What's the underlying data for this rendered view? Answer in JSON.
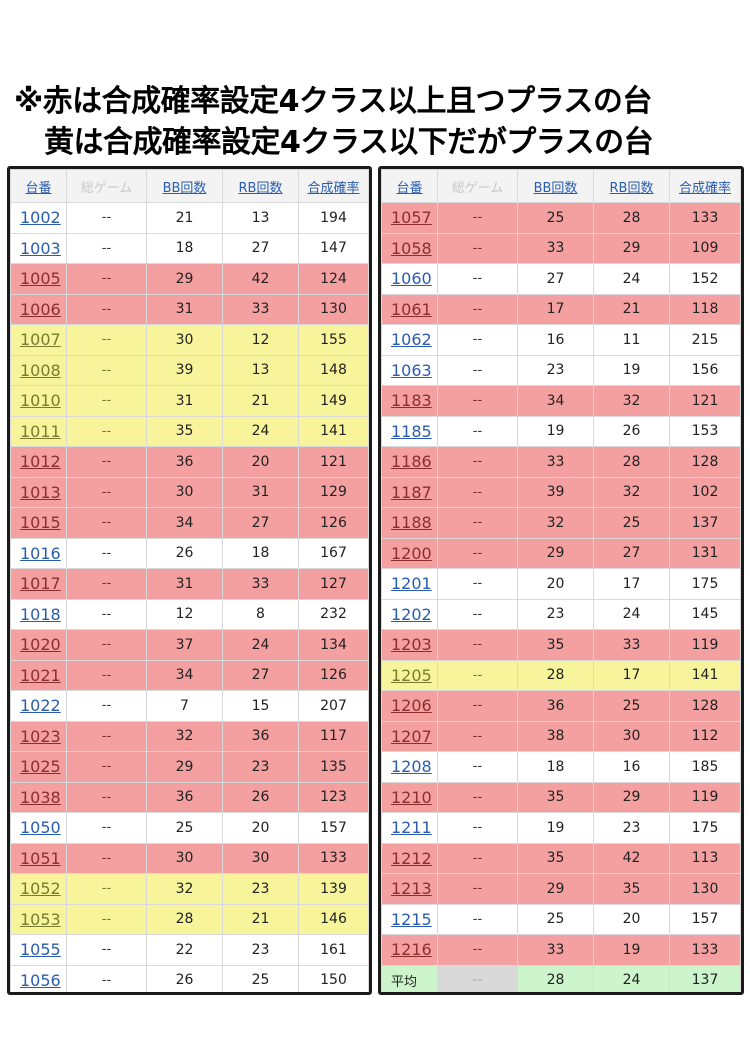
{
  "header": {
    "line1": "※赤は合成確率設定4クラス以上且つプラスの台",
    "line2": "黄は合成確率設定4クラス以下だがプラスの台"
  },
  "columns": [
    "台番",
    "総ゲーム",
    "BB回数",
    "RB回数",
    "合成確率"
  ],
  "left_rows": [
    {
      "id": "1002",
      "games": "--",
      "bb": "21",
      "rb": "13",
      "rate": "194",
      "color": "white"
    },
    {
      "id": "1003",
      "games": "--",
      "bb": "18",
      "rb": "27",
      "rate": "147",
      "color": "white"
    },
    {
      "id": "1005",
      "games": "--",
      "bb": "29",
      "rb": "42",
      "rate": "124",
      "color": "red"
    },
    {
      "id": "1006",
      "games": "--",
      "bb": "31",
      "rb": "33",
      "rate": "130",
      "color": "red"
    },
    {
      "id": "1007",
      "games": "--",
      "bb": "30",
      "rb": "12",
      "rate": "155",
      "color": "yellow"
    },
    {
      "id": "1008",
      "games": "--",
      "bb": "39",
      "rb": "13",
      "rate": "148",
      "color": "yellow"
    },
    {
      "id": "1010",
      "games": "--",
      "bb": "31",
      "rb": "21",
      "rate": "149",
      "color": "yellow"
    },
    {
      "id": "1011",
      "games": "--",
      "bb": "35",
      "rb": "24",
      "rate": "141",
      "color": "yellow"
    },
    {
      "id": "1012",
      "games": "--",
      "bb": "36",
      "rb": "20",
      "rate": "121",
      "color": "red"
    },
    {
      "id": "1013",
      "games": "--",
      "bb": "30",
      "rb": "31",
      "rate": "129",
      "color": "red"
    },
    {
      "id": "1015",
      "games": "--",
      "bb": "34",
      "rb": "27",
      "rate": "126",
      "color": "red"
    },
    {
      "id": "1016",
      "games": "--",
      "bb": "26",
      "rb": "18",
      "rate": "167",
      "color": "white"
    },
    {
      "id": "1017",
      "games": "--",
      "bb": "31",
      "rb": "33",
      "rate": "127",
      "color": "red"
    },
    {
      "id": "1018",
      "games": "--",
      "bb": "12",
      "rb": "8",
      "rate": "232",
      "color": "white"
    },
    {
      "id": "1020",
      "games": "--",
      "bb": "37",
      "rb": "24",
      "rate": "134",
      "color": "red"
    },
    {
      "id": "1021",
      "games": "--",
      "bb": "34",
      "rb": "27",
      "rate": "126",
      "color": "red"
    },
    {
      "id": "1022",
      "games": "--",
      "bb": "7",
      "rb": "15",
      "rate": "207",
      "color": "white"
    },
    {
      "id": "1023",
      "games": "--",
      "bb": "32",
      "rb": "36",
      "rate": "117",
      "color": "red"
    },
    {
      "id": "1025",
      "games": "--",
      "bb": "29",
      "rb": "23",
      "rate": "135",
      "color": "red"
    },
    {
      "id": "1038",
      "games": "--",
      "bb": "36",
      "rb": "26",
      "rate": "123",
      "color": "red"
    },
    {
      "id": "1050",
      "games": "--",
      "bb": "25",
      "rb": "20",
      "rate": "157",
      "color": "white"
    },
    {
      "id": "1051",
      "games": "--",
      "bb": "30",
      "rb": "30",
      "rate": "133",
      "color": "red"
    },
    {
      "id": "1052",
      "games": "--",
      "bb": "32",
      "rb": "23",
      "rate": "139",
      "color": "yellow"
    },
    {
      "id": "1053",
      "games": "--",
      "bb": "28",
      "rb": "21",
      "rate": "146",
      "color": "yellow"
    },
    {
      "id": "1055",
      "games": "--",
      "bb": "22",
      "rb": "23",
      "rate": "161",
      "color": "white"
    },
    {
      "id": "1056",
      "games": "--",
      "bb": "26",
      "rb": "25",
      "rate": "150",
      "color": "white"
    }
  ],
  "right_rows": [
    {
      "id": "1057",
      "games": "--",
      "bb": "25",
      "rb": "28",
      "rate": "133",
      "color": "red"
    },
    {
      "id": "1058",
      "games": "--",
      "bb": "33",
      "rb": "29",
      "rate": "109",
      "color": "red"
    },
    {
      "id": "1060",
      "games": "--",
      "bb": "27",
      "rb": "24",
      "rate": "152",
      "color": "white"
    },
    {
      "id": "1061",
      "games": "--",
      "bb": "17",
      "rb": "21",
      "rate": "118",
      "color": "red"
    },
    {
      "id": "1062",
      "games": "--",
      "bb": "16",
      "rb": "11",
      "rate": "215",
      "color": "white"
    },
    {
      "id": "1063",
      "games": "--",
      "bb": "23",
      "rb": "19",
      "rate": "156",
      "color": "white"
    },
    {
      "id": "1183",
      "games": "--",
      "bb": "34",
      "rb": "32",
      "rate": "121",
      "color": "red"
    },
    {
      "id": "1185",
      "games": "--",
      "bb": "19",
      "rb": "26",
      "rate": "153",
      "color": "white"
    },
    {
      "id": "1186",
      "games": "--",
      "bb": "33",
      "rb": "28",
      "rate": "128",
      "color": "red"
    },
    {
      "id": "1187",
      "games": "--",
      "bb": "39",
      "rb": "32",
      "rate": "102",
      "color": "red"
    },
    {
      "id": "1188",
      "games": "--",
      "bb": "32",
      "rb": "25",
      "rate": "137",
      "color": "red"
    },
    {
      "id": "1200",
      "games": "--",
      "bb": "29",
      "rb": "27",
      "rate": "131",
      "color": "red"
    },
    {
      "id": "1201",
      "games": "--",
      "bb": "20",
      "rb": "17",
      "rate": "175",
      "color": "white"
    },
    {
      "id": "1202",
      "games": "--",
      "bb": "23",
      "rb": "24",
      "rate": "145",
      "color": "white"
    },
    {
      "id": "1203",
      "games": "--",
      "bb": "35",
      "rb": "33",
      "rate": "119",
      "color": "red"
    },
    {
      "id": "1205",
      "games": "--",
      "bb": "28",
      "rb": "17",
      "rate": "141",
      "color": "yellow"
    },
    {
      "id": "1206",
      "games": "--",
      "bb": "36",
      "rb": "25",
      "rate": "128",
      "color": "red"
    },
    {
      "id": "1207",
      "games": "--",
      "bb": "38",
      "rb": "30",
      "rate": "112",
      "color": "red"
    },
    {
      "id": "1208",
      "games": "--",
      "bb": "18",
      "rb": "16",
      "rate": "185",
      "color": "white"
    },
    {
      "id": "1210",
      "games": "--",
      "bb": "35",
      "rb": "29",
      "rate": "119",
      "color": "red"
    },
    {
      "id": "1211",
      "games": "--",
      "bb": "19",
      "rb": "23",
      "rate": "175",
      "color": "white"
    },
    {
      "id": "1212",
      "games": "--",
      "bb": "35",
      "rb": "42",
      "rate": "113",
      "color": "red"
    },
    {
      "id": "1213",
      "games": "--",
      "bb": "29",
      "rb": "35",
      "rate": "130",
      "color": "red"
    },
    {
      "id": "1215",
      "games": "--",
      "bb": "25",
      "rb": "20",
      "rate": "157",
      "color": "white"
    },
    {
      "id": "1216",
      "games": "--",
      "bb": "33",
      "rb": "19",
      "rate": "133",
      "color": "red"
    }
  ],
  "average": {
    "label": "平均",
    "games": "--",
    "bb": "28",
    "rb": "24",
    "rate": "137"
  },
  "colors": {
    "red": "#f5a0a0",
    "yellow": "#f8f49c",
    "average": "#ccf5cc",
    "link": "#2a5db0"
  }
}
